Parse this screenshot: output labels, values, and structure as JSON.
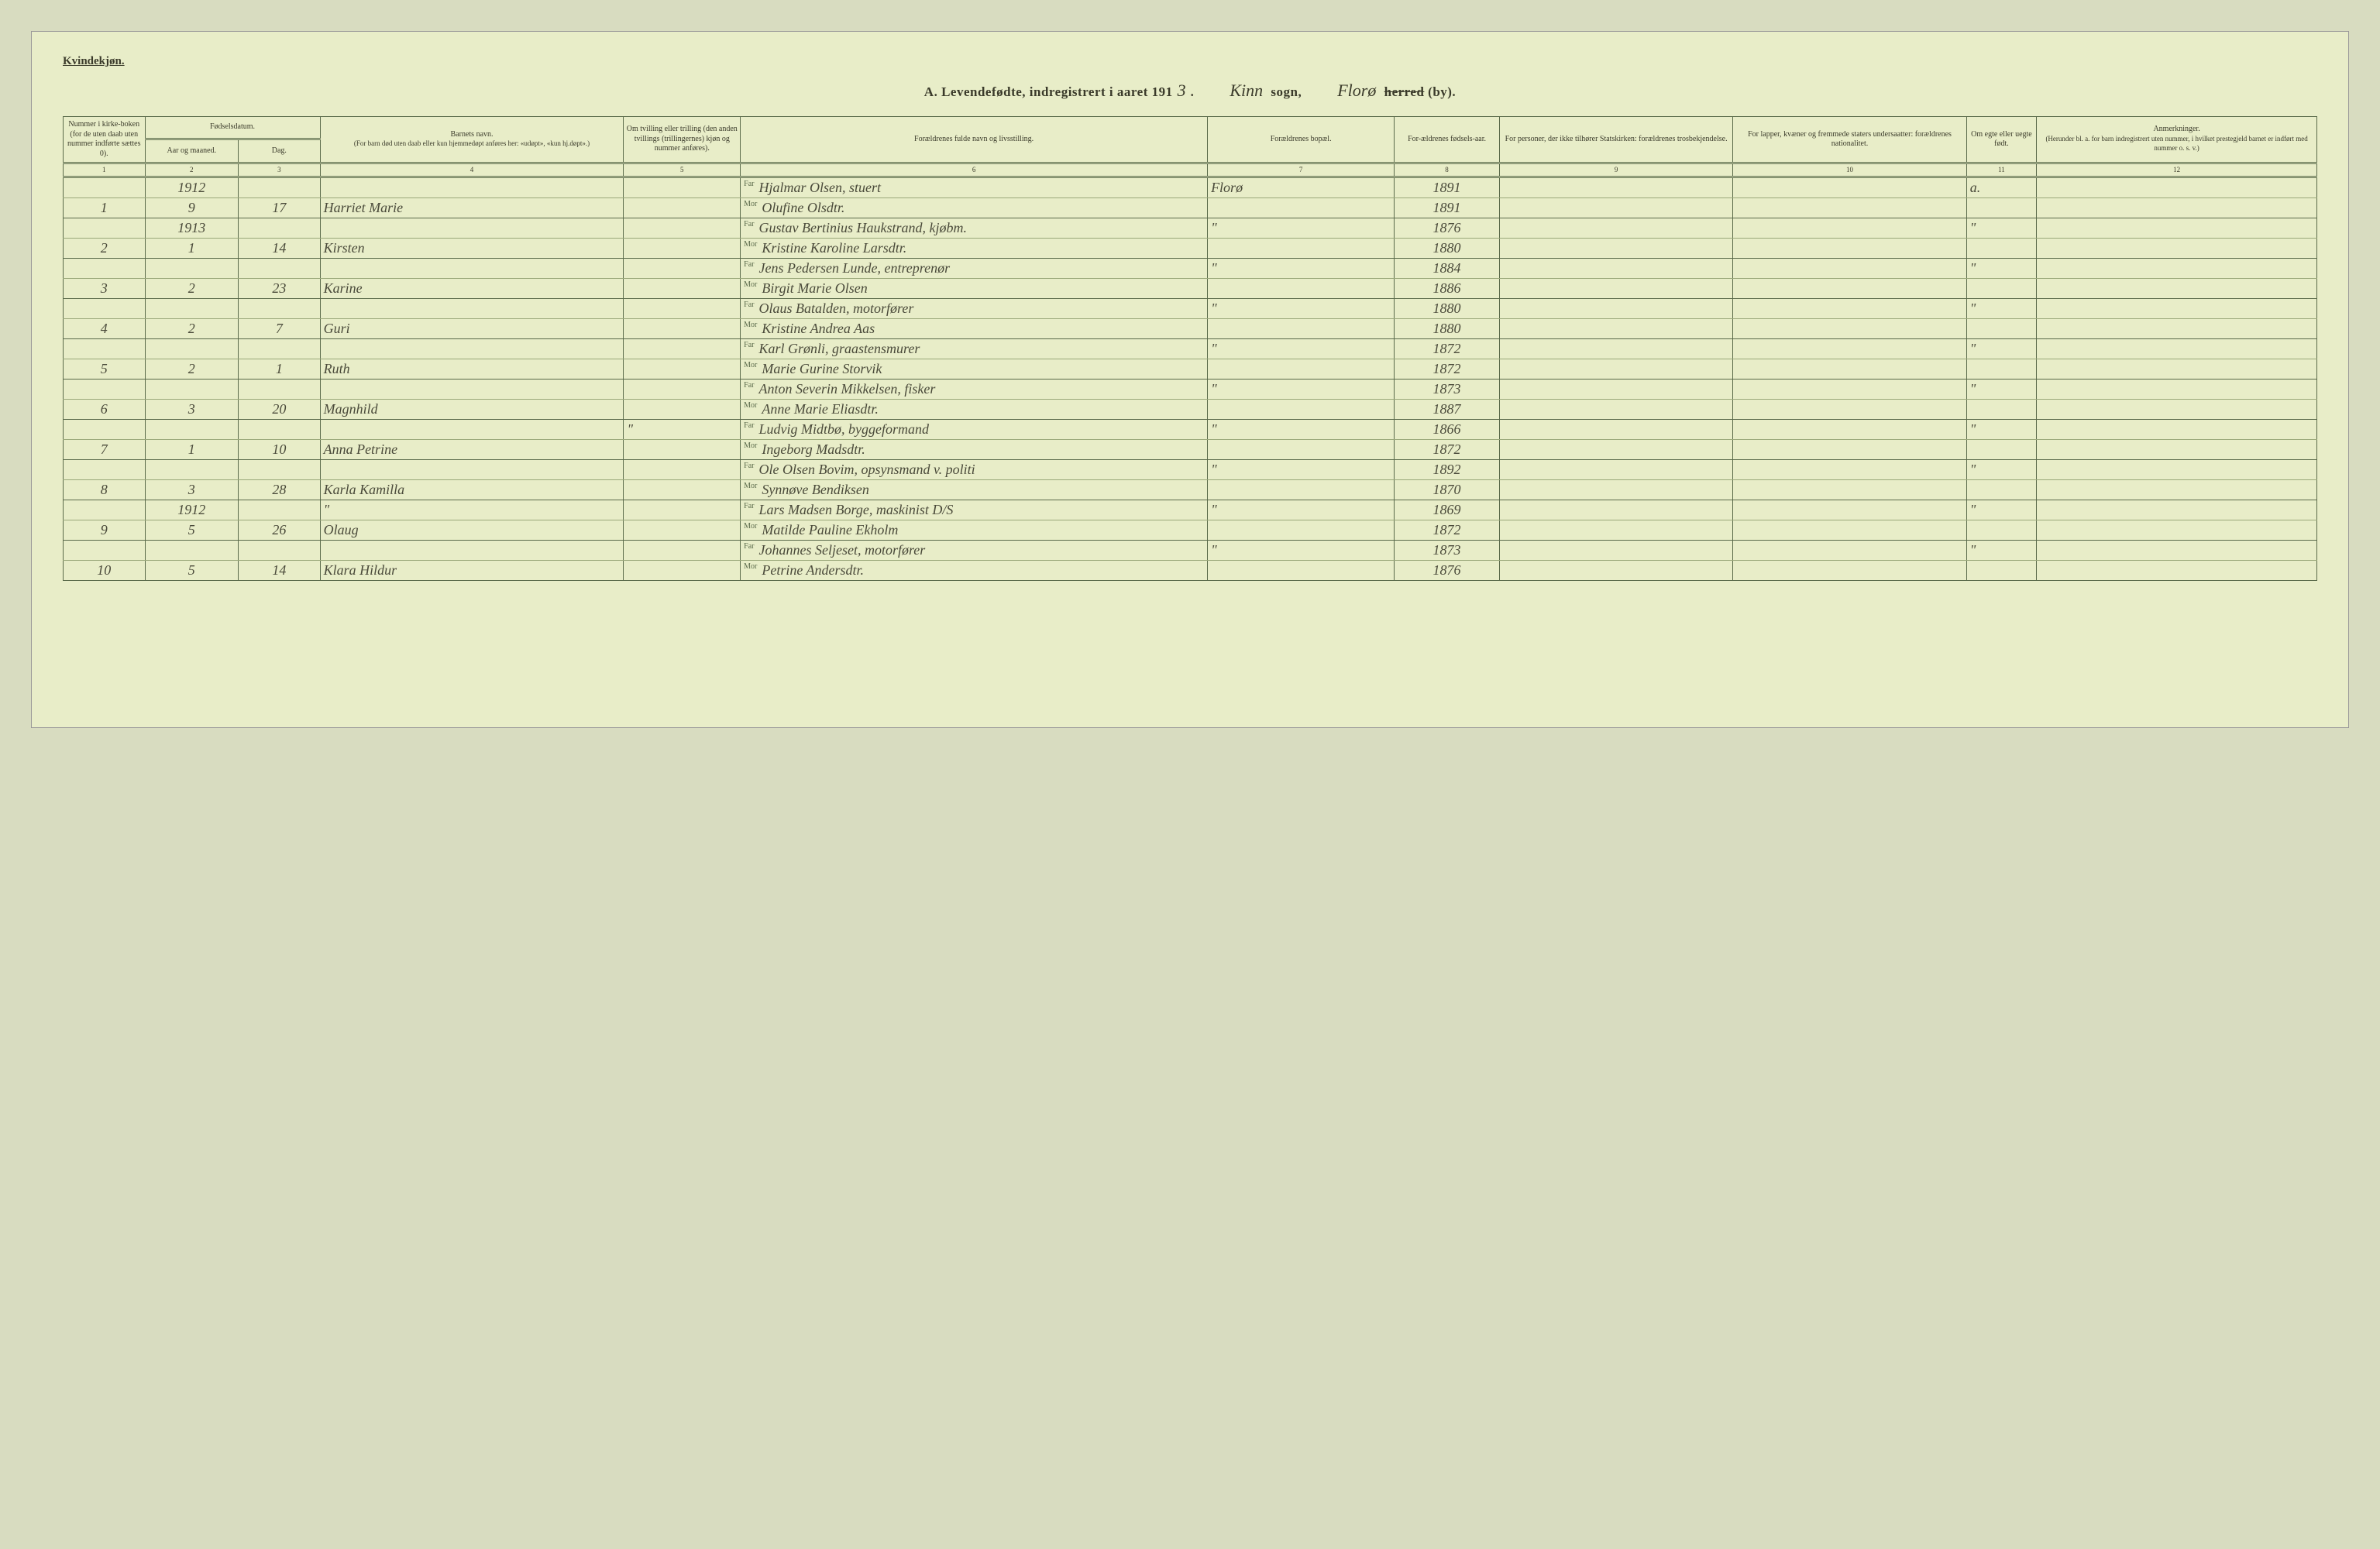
{
  "corner_label": "Kvindekjøn.",
  "title": {
    "prefix": "A.  Levendefødte, indregistrert i aaret 191",
    "year_digit": "3",
    "sogn_hand": "Kinn",
    "sogn_label": "sogn,",
    "herred_hand": "Florø",
    "herred_label_struck": "herred",
    "herred_label_rest": "(by)."
  },
  "headers": {
    "c1": "Nummer i kirke-boken (for de uten daab uten nummer indførte sættes 0).",
    "c2_top": "Fødselsdatum.",
    "c2a": "Aar og maaned.",
    "c2b": "Dag.",
    "c4_top": "Barnets navn.",
    "c4_sub": "(For barn død uten daab eller kun hjemmedøpt anføres her: «udøpt», «kun hj.døpt».)",
    "c5": "Om tvilling eller trilling (den anden tvillings (trillingernes) kjøn og nummer anføres).",
    "c6": "Forældrenes fulde navn og livsstilling.",
    "c7": "Forældrenes bopæl.",
    "c8": "For-ældrenes fødsels-aar.",
    "c9": "For personer, der ikke tilhører Statskirken: forældrenes trosbekjendelse.",
    "c10": "For lapper, kvæner og fremmede staters undersaatter: forældrenes nationalitet.",
    "c11": "Om egte eller uegte født.",
    "c12_top": "Anmerkninger.",
    "c12_sub": "(Herunder bl. a. for barn indregistrert uten nummer, i hvilket prestegjeld barnet er indført med nummer o. s. v.)"
  },
  "colnums": [
    "1",
    "2",
    "3",
    "4",
    "5",
    "6",
    "7",
    "8",
    "9",
    "10",
    "11",
    "12"
  ],
  "rows": [
    {
      "num": "",
      "aar": "1912",
      "dag": "",
      "navn": "",
      "tv": "",
      "far": "Hjalmar Olsen, stuert",
      "bopel": "Florø",
      "faar": "1891",
      "c9": "",
      "c10": "",
      "egte": "a.",
      "anm": ""
    },
    {
      "num": "1",
      "aar": "9",
      "dag": "17",
      "navn": "Harriet Marie",
      "tv": "",
      "mor": "Olufine Olsdtr.",
      "bopel": "",
      "faar": "1891",
      "c9": "",
      "c10": "",
      "egte": "",
      "anm": ""
    },
    {
      "num": "",
      "aar": "1913",
      "dag": "",
      "navn": "",
      "tv": "",
      "far": "Gustav Bertinius Haukstrand, kjøbm.",
      "bopel": "\"",
      "faar": "1876",
      "c9": "",
      "c10": "",
      "egte": "\"",
      "anm": ""
    },
    {
      "num": "2",
      "aar": "1",
      "dag": "14",
      "navn": "Kirsten",
      "tv": "",
      "mor": "Kristine Karoline Larsdtr.",
      "bopel": "",
      "faar": "1880",
      "c9": "",
      "c10": "",
      "egte": "",
      "anm": ""
    },
    {
      "num": "",
      "aar": "",
      "dag": "",
      "navn": "",
      "tv": "",
      "far": "Jens Pedersen Lunde, entreprenør",
      "bopel": "\"",
      "faar": "1884",
      "c9": "",
      "c10": "",
      "egte": "\"",
      "anm": ""
    },
    {
      "num": "3",
      "aar": "2",
      "dag": "23",
      "navn": "Karine",
      "tv": "",
      "mor": "Birgit Marie Olsen",
      "bopel": "",
      "faar": "1886",
      "c9": "",
      "c10": "",
      "egte": "",
      "anm": ""
    },
    {
      "num": "",
      "aar": "",
      "dag": "",
      "navn": "",
      "tv": "",
      "far": "Olaus Batalden, motorfører",
      "bopel": "\"",
      "faar": "1880",
      "c9": "",
      "c10": "",
      "egte": "\"",
      "anm": ""
    },
    {
      "num": "4",
      "aar": "2",
      "dag": "7",
      "navn": "Guri",
      "tv": "",
      "mor": "Kristine Andrea Aas",
      "bopel": "",
      "faar": "1880",
      "c9": "",
      "c10": "",
      "egte": "",
      "anm": ""
    },
    {
      "num": "",
      "aar": "",
      "dag": "",
      "navn": "",
      "tv": "",
      "far": "Karl Grønli, graastensmurer",
      "bopel": "\"",
      "faar": "1872",
      "c9": "",
      "c10": "",
      "egte": "\"",
      "anm": ""
    },
    {
      "num": "5",
      "aar": "2",
      "dag": "1",
      "navn": "Ruth",
      "tv": "",
      "mor": "Marie Gurine Storvik",
      "bopel": "",
      "faar": "1872",
      "c9": "",
      "c10": "",
      "egte": "",
      "anm": ""
    },
    {
      "num": "",
      "aar": "",
      "dag": "",
      "navn": "",
      "tv": "",
      "far": "Anton Severin Mikkelsen, fisker",
      "bopel": "\"",
      "faar": "1873",
      "c9": "",
      "c10": "",
      "egte": "\"",
      "anm": ""
    },
    {
      "num": "6",
      "aar": "3",
      "dag": "20",
      "navn": "Magnhild",
      "tv": "",
      "mor": "Anne Marie Eliasdtr.",
      "bopel": "",
      "faar": "1887",
      "c9": "",
      "c10": "",
      "egte": "",
      "anm": ""
    },
    {
      "num": "",
      "aar": "",
      "dag": "",
      "navn": "",
      "tv": "\"",
      "far": "Ludvig Midtbø, byggeformand",
      "bopel": "\"",
      "faar": "1866",
      "c9": "",
      "c10": "",
      "egte": "\"",
      "anm": ""
    },
    {
      "num": "7",
      "aar": "1",
      "dag": "10",
      "navn": "Anna Petrine",
      "tv": "",
      "mor": "Ingeborg Madsdtr.",
      "bopel": "",
      "faar": "1872",
      "c9": "",
      "c10": "",
      "egte": "",
      "anm": ""
    },
    {
      "num": "",
      "aar": "",
      "dag": "",
      "navn": "",
      "tv": "",
      "far": "Ole Olsen Bovim, opsynsmand v. politi",
      "bopel": "\"",
      "faar": "1892",
      "c9": "",
      "c10": "",
      "egte": "\"",
      "anm": ""
    },
    {
      "num": "8",
      "aar": "3",
      "dag": "28",
      "navm": "",
      "navn": "Karla Kamilla",
      "tv": "",
      "mor": "Synnøve Bendiksen",
      "bopel": "",
      "faar": "1870",
      "c9": "",
      "c10": "",
      "egte": "",
      "anm": ""
    },
    {
      "num": "",
      "aar": "1912",
      "dag": "",
      "navn": "\"",
      "tv": "",
      "far": "Lars Madsen Borge, maskinist D/S",
      "bopel": "\"",
      "faar": "1869",
      "c9": "",
      "c10": "",
      "egte": "\"",
      "anm": ""
    },
    {
      "num": "9",
      "aar": "5",
      "dag": "26",
      "navn": "Olaug",
      "tv": "",
      "mor": "Matilde Pauline Ekholm",
      "bopel": "",
      "faar": "1872",
      "c9": "",
      "c10": "",
      "egte": "",
      "anm": ""
    },
    {
      "num": "",
      "aar": "",
      "dag": "",
      "navn": "",
      "tv": "",
      "far": "Johannes Seljeset, motorfører",
      "bopel": "\"",
      "faar": "1873",
      "c9": "",
      "c10": "",
      "egte": "\"",
      "anm": ""
    },
    {
      "num": "10",
      "aar": "5",
      "dag": "14",
      "navn": "Klara Hildur",
      "tv": "",
      "mor": "Petrine Andersdtr.",
      "bopel": "",
      "faar": "1876",
      "c9": "",
      "c10": "",
      "egte": "",
      "anm": ""
    }
  ],
  "farmor": {
    "far": "Far",
    "mor": "Mor"
  }
}
